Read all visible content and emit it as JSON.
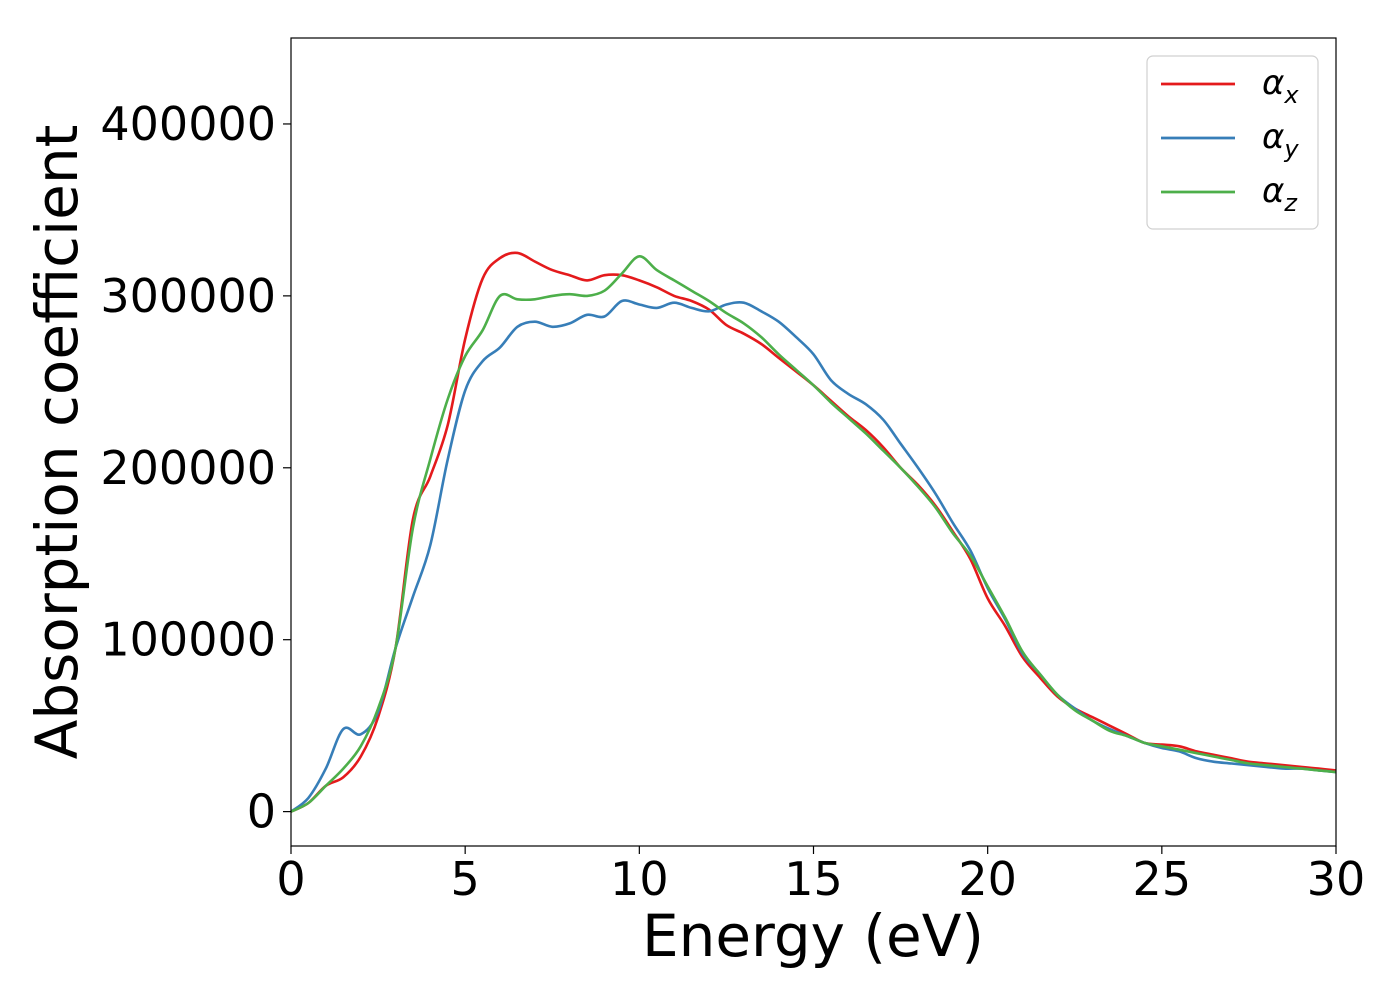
{
  "chart_data": {
    "type": "line",
    "xlabel": "Energy (eV)",
    "ylabel": "Absorption coefficient",
    "xlim": [
      0,
      30
    ],
    "ylim": [
      -20000,
      450000
    ],
    "xticks": [
      0,
      5,
      10,
      15,
      20,
      25,
      30
    ],
    "yticks": [
      0,
      100000,
      200000,
      300000,
      400000
    ],
    "legend_position": "top-right",
    "grid": false,
    "series": [
      {
        "name": "αx",
        "label_base": "α",
        "label_sub": "x",
        "color": "#e41a1c",
        "x": [
          0,
          0.5,
          1,
          1.5,
          2,
          2.5,
          3,
          3.5,
          4,
          4.5,
          5,
          5.5,
          6,
          6.5,
          7,
          7.5,
          8,
          8.5,
          9,
          9.5,
          10,
          10.5,
          11,
          11.5,
          12,
          12.5,
          13,
          13.5,
          14,
          14.5,
          15,
          15.5,
          16,
          16.5,
          17,
          17.5,
          18,
          18.5,
          19,
          19.5,
          20,
          20.5,
          21,
          21.5,
          22,
          22.5,
          23,
          23.5,
          24,
          24.5,
          25,
          25.5,
          26,
          26.5,
          27,
          27.5,
          28,
          28.5,
          29,
          29.5,
          30
        ],
        "values": [
          0,
          5000,
          15000,
          20000,
          32000,
          55000,
          95000,
          170000,
          195000,
          225000,
          275000,
          310000,
          322000,
          325000,
          320000,
          315000,
          312000,
          309000,
          312000,
          312000,
          309000,
          305000,
          300000,
          297000,
          292000,
          283000,
          278000,
          272000,
          264000,
          256000,
          248000,
          239000,
          230000,
          222000,
          212000,
          200000,
          190000,
          178000,
          163000,
          147000,
          124000,
          108000,
          90000,
          78000,
          67000,
          60000,
          55000,
          50000,
          45000,
          40000,
          39000,
          38000,
          35000,
          33000,
          31000,
          29000,
          28000,
          27000,
          26000,
          25000,
          24000
        ]
      },
      {
        "name": "αy",
        "label_base": "α",
        "label_sub": "y",
        "color": "#377eb8",
        "x": [
          0,
          0.5,
          1,
          1.5,
          2,
          2.5,
          3,
          3.5,
          4,
          4.5,
          5,
          5.5,
          6,
          6.5,
          7,
          7.5,
          8,
          8.5,
          9,
          9.5,
          10,
          10.5,
          11,
          11.5,
          12,
          12.5,
          13,
          13.5,
          14,
          14.5,
          15,
          15.5,
          16,
          16.5,
          17,
          17.5,
          18,
          18.5,
          19,
          19.5,
          20,
          20.5,
          21,
          21.5,
          22,
          22.5,
          23,
          23.5,
          24,
          24.5,
          25,
          25.5,
          26,
          26.5,
          27,
          27.5,
          28,
          28.5,
          29,
          29.5,
          30
        ],
        "values": [
          0,
          8000,
          25000,
          48000,
          45000,
          58000,
          95000,
          125000,
          155000,
          205000,
          245000,
          262000,
          270000,
          282000,
          285000,
          282000,
          284000,
          289000,
          288000,
          297000,
          295000,
          293000,
          296000,
          293000,
          291000,
          295000,
          296000,
          291000,
          285000,
          276000,
          266000,
          251000,
          243000,
          237000,
          228000,
          214000,
          200000,
          185000,
          168000,
          152000,
          130000,
          112000,
          92000,
          80000,
          68000,
          60000,
          53000,
          48000,
          44000,
          40000,
          37000,
          35000,
          31000,
          29000,
          28000,
          27000,
          26000,
          25000,
          25000,
          24000,
          23000
        ]
      },
      {
        "name": "αz",
        "label_base": "α",
        "label_sub": "z",
        "color": "#4daf4a",
        "x": [
          0,
          0.5,
          1,
          1.5,
          2,
          2.5,
          3,
          3.5,
          4,
          4.5,
          5,
          5.5,
          6,
          6.5,
          7,
          7.5,
          8,
          8.5,
          9,
          9.5,
          10,
          10.5,
          11,
          11.5,
          12,
          12.5,
          13,
          13.5,
          14,
          14.5,
          15,
          15.5,
          16,
          16.5,
          17,
          17.5,
          18,
          18.5,
          19,
          19.5,
          20,
          20.5,
          21,
          21.5,
          22,
          22.5,
          23,
          23.5,
          24,
          24.5,
          25,
          25.5,
          26,
          26.5,
          27,
          27.5,
          28,
          28.5,
          29,
          29.5,
          30
        ],
        "values": [
          0,
          5000,
          15000,
          25000,
          38000,
          60000,
          95000,
          165000,
          205000,
          240000,
          265000,
          280000,
          300000,
          298000,
          298000,
          300000,
          301000,
          300000,
          303000,
          313000,
          323000,
          315000,
          309000,
          303000,
          297000,
          290000,
          284000,
          276000,
          266000,
          257000,
          248000,
          238000,
          229000,
          220000,
          210000,
          200000,
          189000,
          177000,
          162000,
          149000,
          131000,
          113000,
          93000,
          80000,
          68000,
          59000,
          53000,
          47000,
          44000,
          40000,
          38000,
          36000,
          34000,
          32000,
          30000,
          28000,
          27000,
          26000,
          25000,
          24000,
          23000
        ]
      }
    ]
  }
}
